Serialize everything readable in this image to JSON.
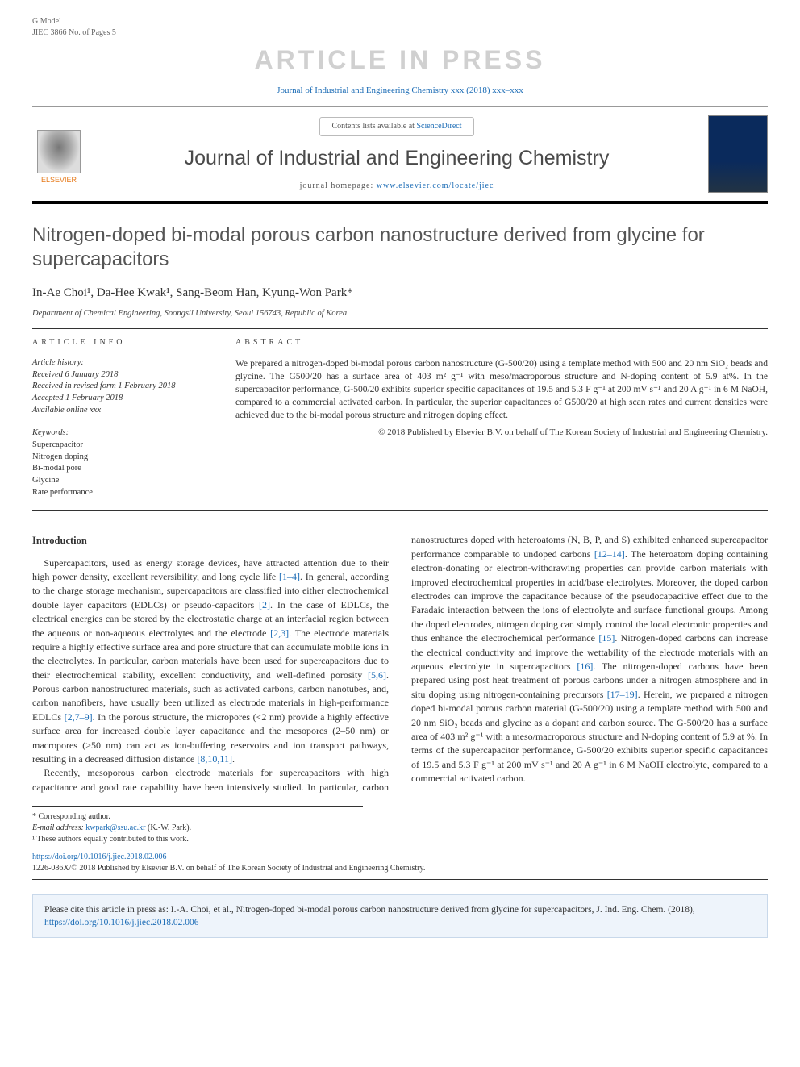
{
  "header": {
    "gmodel": "G Model",
    "jiec": "JIEC 3866 No. of Pages 5",
    "watermark": "ARTICLE IN PRESS",
    "journal_ref": "Journal of Industrial and Engineering Chemistry xxx (2018) xxx–xxx"
  },
  "banner": {
    "contents_prefix": "Contents lists available at ",
    "contents_link": "ScienceDirect",
    "journal_title": "Journal of Industrial and Engineering Chemistry",
    "homepage_prefix": "journal homepage: ",
    "homepage_url": "www.elsevier.com/locate/jiec",
    "elsevier": "ELSEVIER"
  },
  "article": {
    "title": "Nitrogen-doped bi-modal porous carbon nanostructure derived from glycine for supercapacitors",
    "authors": "In-Ae Choi¹, Da-Hee Kwak¹, Sang-Beom Han, Kyung-Won Park*",
    "affiliation": "Department of Chemical Engineering, Soongsil University, Seoul 156743, Republic of Korea"
  },
  "info": {
    "head": "ARTICLE INFO",
    "history_label": "Article history:",
    "received": "Received 6 January 2018",
    "revised": "Received in revised form 1 February 2018",
    "accepted": "Accepted 1 February 2018",
    "online": "Available online xxx",
    "keywords_label": "Keywords:",
    "kw1": "Supercapacitor",
    "kw2": "Nitrogen doping",
    "kw3": "Bi-modal pore",
    "kw4": "Glycine",
    "kw5": "Rate performance"
  },
  "abstract": {
    "head": "ABSTRACT",
    "text": "We prepared a nitrogen-doped bi-modal porous carbon nanostructure (G-500/20) using a template method with 500 and 20 nm SiO₂ beads and glycine. The G500/20 has a surface area of 403 m² g⁻¹ with meso/macroporous structure and N-doping content of 5.9 at%. In the supercapacitor performance, G-500/20 exhibits superior specific capacitances of 19.5 and 5.3 F g⁻¹ at 200 mV s⁻¹ and 20 A g⁻¹ in 6 M NaOH, compared to a commercial activated carbon. In particular, the superior capacitances of G500/20 at high scan rates and current densities were achieved due to the bi-modal porous structure and nitrogen doping effect.",
    "copyright": "© 2018 Published by Elsevier B.V. on behalf of The Korean Society of Industrial and Engineering Chemistry."
  },
  "body": {
    "sec_head": "Introduction",
    "p1a": "Supercapacitors, used as energy storage devices, have attracted attention due to their high power density, excellent reversibility, and long cycle life ",
    "r1": "[1–4]",
    "p1b": ". In general, according to the charge storage mechanism, supercapacitors are classified into either electrochemical double layer capacitors (EDLCs) or pseudo-capacitors ",
    "r2": "[2]",
    "p1c": ". In the case of EDLCs, the electrical energies can be stored by the electrostatic charge at an interfacial region between the aqueous or non-aqueous electrolytes and the electrode ",
    "r3": "[2,3]",
    "p1d": ". The electrode materials require a highly effective surface area and pore structure that can accumulate mobile ions in the electrolytes. In particular, carbon materials have been used for supercapacitors due to their electrochemical stability, excellent conductivity, and well-defined porosity ",
    "r4": "[5,6]",
    "p1e": ". Porous carbon nanostructured materials, such as activated carbons, carbon nanotubes, and, carbon nanofibers, have usually been utilized as electrode materials in high-performance EDLCs ",
    "r5": "[2,7–9]",
    "p1f": ". In the porous structure, the micropores (<2 nm) provide a highly effective surface area for increased double layer capacitance and the mesopores (2–50 nm) or macropores (>50 nm) can act as ion-buffering reservoirs and ion transport pathways, resulting in a decreased diffusion distance ",
    "r6": "[8,10,11]",
    "p1g": ".",
    "p2a": "Recently, mesoporous carbon electrode materials for supercapacitors with high capacitance and good rate capability have been intensively studied. In particular, carbon nanostructures doped with heteroatoms (N, B, P, and S) exhibited enhanced supercapacitor performance comparable to undoped carbons ",
    "r7": "[12–14]",
    "p2b": ". The heteroatom doping containing electron-donating or electron-withdrawing properties can provide carbon materials with improved electrochemical properties in acid/base electrolytes. Moreover, the doped carbon electrodes can improve the capacitance because of the pseudocapacitive effect due to the Faradaic interaction between the ions of electrolyte and surface functional groups. Among the doped electrodes, nitrogen doping can simply control the local electronic properties and thus enhance the electrochemical performance ",
    "r8": "[15]",
    "p2c": ". Nitrogen-doped carbons can increase the electrical conductivity and improve the wettability of the electrode materials with an aqueous electrolyte in supercapacitors ",
    "r9": "[16]",
    "p2d": ". The nitrogen-doped carbons have been prepared using post heat treatment of porous carbons under a nitrogen atmosphere and in situ doping using nitrogen-containing precursors ",
    "r10": "[17–19]",
    "p2e": ". Herein, we prepared a nitrogen doped bi-modal porous carbon material (G-500/20) using a template method with 500 and 20 nm SiO₂ beads and glycine as a dopant and carbon source. The G-500/20 has a surface area of 403 m² g⁻¹ with a meso/macroporous structure and N-doping content of 5.9 at %. In terms of the supercapacitor performance, G-500/20 exhibits superior specific capacitances of 19.5 and 5.3 F g⁻¹ at 200 mV s⁻¹ and 20 A g⁻¹ in 6 M NaOH electrolyte, compared to a commercial activated carbon."
  },
  "footnotes": {
    "corr": "* Corresponding author.",
    "email_label": "E-mail address: ",
    "email": "kwpark@ssu.ac.kr",
    "email_suffix": " (K.-W. Park).",
    "equal": "¹ These authors equally contributed to this work."
  },
  "doi": {
    "url": "https://doi.org/10.1016/j.jiec.2018.02.006",
    "issn_line": "1226-086X/© 2018 Published by Elsevier B.V. on behalf of The Korean Society of Industrial and Engineering Chemistry."
  },
  "citebox": {
    "text_a": "Please cite this article in press as: I.-A. Choi, et al., Nitrogen-doped bi-modal porous carbon nanostructure derived from glycine for supercapacitors, J. Ind. Eng. Chem. (2018), ",
    "link": "https://doi.org/10.1016/j.jiec.2018.02.006"
  },
  "colors": {
    "link": "#1a6bb5",
    "watermark": "#d0d0d0",
    "text": "#333333",
    "rule": "#333333",
    "citebox_bg": "#eef4fb",
    "citebox_border": "#c8d8ea",
    "elsevier_orange": "#e67817"
  }
}
